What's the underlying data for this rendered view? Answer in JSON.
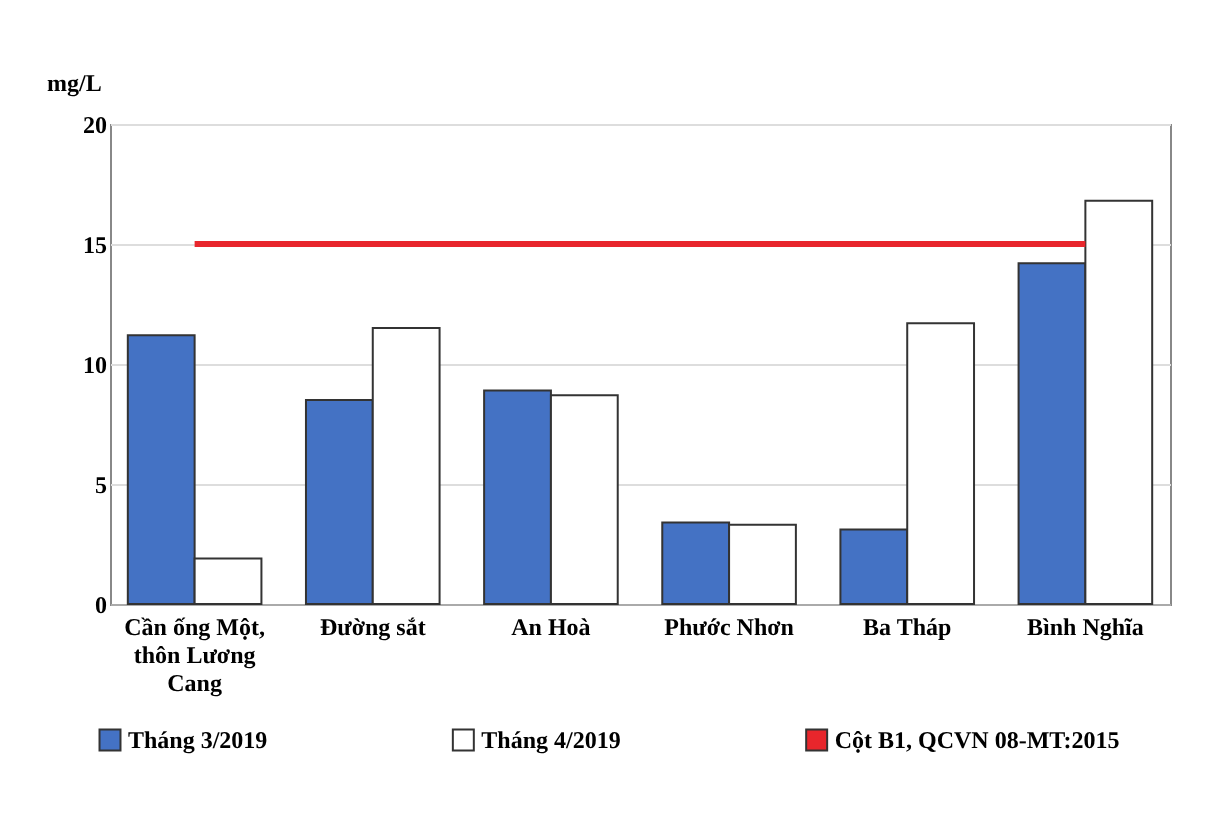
{
  "chart_data": {
    "type": "bar",
    "ylabel": "mg/L",
    "categories": [
      "Cần ống Một, thôn Lương Cang",
      "Đường sắt",
      "An Hoà",
      "Phước Nhơn",
      "Ba Tháp",
      "Bình Nghĩa"
    ],
    "series": [
      {
        "name": "Tháng 3/2019",
        "color": "#4472c4",
        "values": [
          11.2,
          8.5,
          8.9,
          3.4,
          3.1,
          14.2
        ]
      },
      {
        "name": "Tháng 4/2019",
        "color": "#ffffff",
        "values": [
          1.9,
          11.5,
          8.7,
          3.3,
          11.7,
          16.8
        ]
      },
      {
        "name": "Cột B1, QCVN 08-MT:2015",
        "type": "line",
        "color": "#e8262c",
        "values": [
          15,
          15,
          15,
          15,
          15,
          15
        ]
      }
    ],
    "ylim": [
      0,
      20
    ],
    "yticks": [
      0,
      5,
      10,
      15,
      20
    ],
    "grid": "y",
    "legend": "bottom"
  }
}
